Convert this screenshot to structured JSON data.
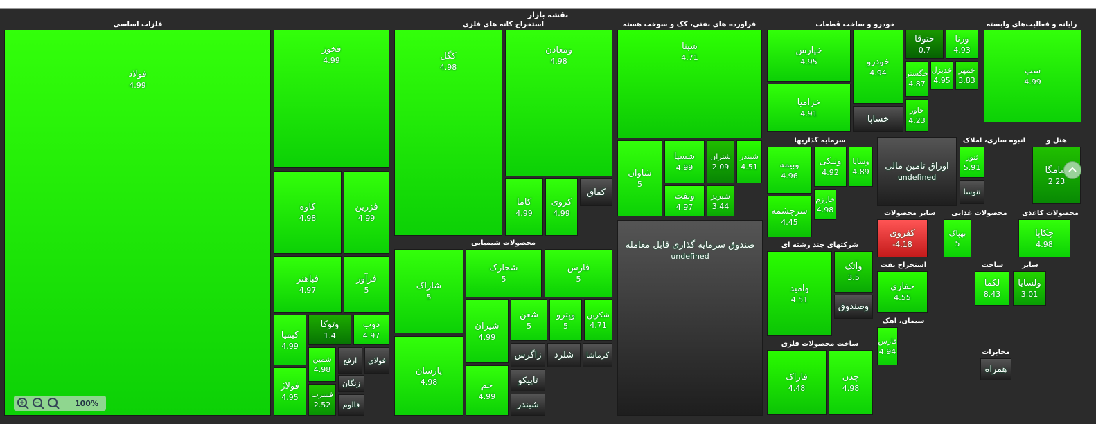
{
  "title": "نقشه بازار",
  "zoom": "100%",
  "sectors": [
    {
      "name": "فلزات اساسی",
      "tiles": [
        {
          "label": "فولاد",
          "value": 4.99
        },
        {
          "label": "فخوز",
          "value": 4.99
        },
        {
          "label": "کاوه",
          "value": 4.98
        },
        {
          "label": "فزرین",
          "value": 4.99
        },
        {
          "label": "فباهنر",
          "value": 4.97
        },
        {
          "label": "فرآور",
          "value": 5
        },
        {
          "label": "کیمیا",
          "value": 4.99
        },
        {
          "label": "وتوکا",
          "value": 1.4
        },
        {
          "label": "ذوب",
          "value": 4.97
        },
        {
          "label": "فولاژ",
          "value": 4.95
        },
        {
          "label": "شمین",
          "value": 4.98
        },
        {
          "label": "ارفع"
        },
        {
          "label": "فولای"
        },
        {
          "label": "زنگان"
        },
        {
          "label": "فسرب",
          "value": 2.52
        },
        {
          "label": "فالوم"
        }
      ]
    },
    {
      "name": "استخراج کانه های فلزی",
      "tiles": [
        {
          "label": "کگل",
          "value": 4.98
        },
        {
          "label": "ومعادن",
          "value": 4.98
        },
        {
          "label": "کاما",
          "value": 4.99
        },
        {
          "label": "کروی",
          "value": 4.99
        },
        {
          "label": "کفاق"
        }
      ]
    },
    {
      "name": "محصولات شیمیایی",
      "tiles": [
        {
          "label": "شاراک",
          "value": 5
        },
        {
          "label": "شخارک",
          "value": 5
        },
        {
          "label": "فارس",
          "value": 5
        },
        {
          "label": "شیران",
          "value": 4.99
        },
        {
          "label": "شعن",
          "value": 5
        },
        {
          "label": "وپترو",
          "value": 5
        },
        {
          "label": "شکربن",
          "value": 4.71
        },
        {
          "label": "پارسان",
          "value": 4.98
        },
        {
          "label": "جم",
          "value": 4.99
        },
        {
          "label": "زاگرس"
        },
        {
          "label": "شلرد"
        },
        {
          "label": "کرماشا"
        },
        {
          "label": "تاپیکو"
        },
        {
          "label": "شبندر"
        }
      ]
    },
    {
      "name": "فراورده های نفتی، کک و سوخت هسته",
      "tiles": [
        {
          "label": "شپنا",
          "value": 4.71
        },
        {
          "label": "شاوان",
          "value": 5
        },
        {
          "label": "شسپا",
          "value": 4.99
        },
        {
          "label": "شتران",
          "value": 2.09
        },
        {
          "label": "شبندر",
          "value": 4.51
        },
        {
          "label": "ونفت",
          "value": 4.97
        },
        {
          "label": "شبریز",
          "value": 3.44
        }
      ]
    },
    {
      "tiles": [
        {
          "label": "صندوق سرمایه گذاری قابل معامله",
          "value": "undefined"
        }
      ]
    },
    {
      "name": "خودرو و ساخت قطعات",
      "tiles": [
        {
          "label": "خپارس",
          "value": 4.95
        },
        {
          "label": "خودرو",
          "value": 4.94
        },
        {
          "label": "ختوقا",
          "value": 0.7
        },
        {
          "label": "ورنا",
          "value": 4.93
        },
        {
          "label": "خزامیا",
          "value": 4.91
        },
        {
          "label": "خساپا"
        },
        {
          "label": "خگستر",
          "value": 4.87
        },
        {
          "label": "خدیزل",
          "value": 4.95
        },
        {
          "label": "خمهر",
          "value": 3.83
        },
        {
          "label": "خاور",
          "value": 4.23
        }
      ]
    },
    {
      "name": "رایانه و فعالیت‌های وابسته",
      "tiles": [
        {
          "label": "سپ",
          "value": 4.99
        }
      ]
    },
    {
      "name": "سرمایه گذاریها",
      "tiles": [
        {
          "label": "وبیمه",
          "value": 4.96
        },
        {
          "label": "ونیکی",
          "value": 4.92
        },
        {
          "label": "وسایا",
          "value": 4.89
        },
        {
          "label": "سرچشمه",
          "value": 4.45
        },
        {
          "label": "خارزم",
          "value": 4.98
        }
      ]
    },
    {
      "tiles": [
        {
          "label": "اوراق تامین مالی",
          "value": "undefined"
        }
      ]
    },
    {
      "name": "انبوه سازی، املاک",
      "tiles": [
        {
          "label": "ثنور",
          "value": 5.91
        },
        {
          "label": "ثنوسا"
        }
      ]
    },
    {
      "name": "هتل و",
      "tiles": [
        {
          "label": "سامگا",
          "value": 2.23
        }
      ]
    },
    {
      "name": "شرکتهای چند رشته ای",
      "tiles": [
        {
          "label": "وامید",
          "value": 4.51
        },
        {
          "label": "وآتک",
          "value": 3.5
        },
        {
          "label": "وصندوق"
        }
      ]
    },
    {
      "name": "ساخت محصولات فلزی",
      "tiles": [
        {
          "label": "فاراک",
          "value": 4.48
        },
        {
          "label": "چدن",
          "value": 4.98
        }
      ]
    },
    {
      "name": "سایر محصولات",
      "tiles": [
        {
          "label": "کفروی",
          "value": -4.18
        }
      ]
    },
    {
      "name": "محصولات غذایی",
      "tiles": [
        {
          "label": "بهپاک",
          "value": 5
        }
      ]
    },
    {
      "name": "محصولات کاغذی",
      "tiles": [
        {
          "label": "چکاپا",
          "value": 4.98
        }
      ]
    },
    {
      "name": "استخراج نفت",
      "tiles": [
        {
          "label": "حفاری",
          "value": 4.55
        }
      ]
    },
    {
      "name": "ساخت",
      "tiles": [
        {
          "label": "لکما",
          "value": 8.43
        }
      ]
    },
    {
      "name": "سایر",
      "tiles": [
        {
          "label": "ولسایا",
          "value": 3.01
        }
      ]
    },
    {
      "name": "سیمان، آهک",
      "tiles": [
        {
          "label": "فارس",
          "value": 4.94
        }
      ]
    },
    {
      "name": "مخابرات",
      "tiles": [
        {
          "label": "همراه"
        }
      ]
    }
  ]
}
